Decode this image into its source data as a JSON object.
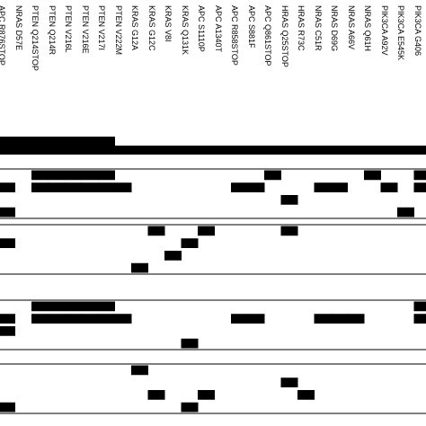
{
  "colors": {
    "fill": "#000000",
    "background": "#ffffff"
  },
  "columns": [
    "APC R876STOP",
    "NRAS D57E",
    "PTEN Q214STOP",
    "PTEN Q214R",
    "PTEN V216L",
    "PTEN V216E",
    "PTEN V217I",
    "PTEN V222M",
    "KRAS G12A",
    "KRAS G12C",
    "KRAS V8I",
    "KRAS Q131K",
    "APC S1110P",
    "APC A1340T",
    "APC R858STOP",
    "APC S881F",
    "APC Q861STOP",
    "HRAS Q25STOP",
    "HRAS R73C",
    "NRAS C51R",
    "NRAS D69G",
    "NRAS A66V",
    "NRAS Q61H",
    "PIK3CA A92V",
    "PIK3CA E545K",
    "PIK3CA G406"
  ],
  "matrix": {
    "summary_bar": [
      1,
      1,
      1,
      1,
      1,
      1,
      1,
      0,
      0,
      0,
      0,
      0,
      0,
      0,
      0,
      0,
      0,
      0,
      0,
      0,
      0,
      0,
      0,
      0,
      0,
      0
    ],
    "section_1": [
      [
        0,
        0,
        1,
        1,
        1,
        1,
        1,
        0,
        0,
        0,
        0,
        0,
        0,
        0,
        0,
        0,
        1,
        0,
        0,
        0,
        0,
        0,
        1,
        0,
        0,
        1
      ],
      [
        1,
        0,
        1,
        1,
        1,
        1,
        1,
        1,
        0,
        0,
        0,
        0,
        0,
        0,
        1,
        1,
        0,
        0,
        0,
        1,
        1,
        0,
        0,
        1,
        0,
        1
      ],
      [
        0,
        0,
        0,
        0,
        0,
        0,
        0,
        0,
        0,
        0,
        0,
        0,
        0,
        0,
        0,
        0,
        0,
        1,
        0,
        0,
        0,
        0,
        0,
        0,
        0,
        0
      ],
      [
        1,
        0,
        0,
        0,
        0,
        0,
        0,
        0,
        0,
        0,
        0,
        0,
        0,
        0,
        0,
        0,
        0,
        0,
        0,
        0,
        0,
        0,
        0,
        0,
        1,
        0
      ]
    ],
    "section_2": [
      [
        0,
        0,
        0,
        0,
        0,
        0,
        0,
        0,
        0,
        1,
        0,
        0,
        1,
        0,
        0,
        0,
        0,
        1,
        0,
        0,
        0,
        0,
        0,
        0,
        0,
        0
      ],
      [
        1,
        0,
        0,
        0,
        0,
        0,
        0,
        0,
        0,
        0,
        0,
        1,
        0,
        0,
        0,
        0,
        0,
        0,
        0,
        0,
        0,
        0,
        0,
        0,
        0,
        0
      ],
      [
        0,
        0,
        0,
        0,
        0,
        0,
        0,
        0,
        0,
        0,
        1,
        0,
        0,
        0,
        0,
        0,
        0,
        0,
        0,
        0,
        0,
        0,
        0,
        0,
        0,
        0
      ],
      [
        0,
        0,
        0,
        0,
        0,
        0,
        0,
        0,
        1,
        0,
        0,
        0,
        0,
        0,
        0,
        0,
        0,
        0,
        0,
        0,
        0,
        0,
        0,
        0,
        0,
        0
      ]
    ],
    "section_3": [
      [
        0,
        0,
        1,
        1,
        1,
        1,
        1,
        0,
        0,
        0,
        0,
        0,
        0,
        0,
        0,
        0,
        0,
        0,
        0,
        0,
        0,
        0,
        0,
        0,
        0,
        1
      ],
      [
        1,
        0,
        1,
        1,
        1,
        1,
        1,
        1,
        0,
        0,
        0,
        0,
        0,
        0,
        1,
        1,
        0,
        0,
        0,
        1,
        1,
        1,
        0,
        0,
        0,
        1
      ],
      [
        1,
        0,
        0,
        0,
        0,
        0,
        0,
        0,
        0,
        0,
        0,
        0,
        0,
        0,
        0,
        0,
        0,
        0,
        0,
        0,
        0,
        0,
        0,
        0,
        0,
        0
      ],
      [
        0,
        0,
        0,
        0,
        0,
        0,
        0,
        0,
        0,
        0,
        0,
        1,
        0,
        0,
        0,
        0,
        0,
        0,
        0,
        0,
        0,
        0,
        0,
        0,
        0,
        0
      ]
    ],
    "section_4": [
      [
        0,
        0,
        0,
        0,
        0,
        0,
        0,
        0,
        1,
        0,
        0,
        0,
        0,
        0,
        0,
        0,
        0,
        0,
        0,
        0,
        0,
        0,
        0,
        0,
        0,
        0
      ],
      [
        0,
        0,
        0,
        0,
        0,
        0,
        0,
        0,
        0,
        0,
        0,
        0,
        0,
        0,
        0,
        0,
        0,
        1,
        0,
        0,
        0,
        0,
        0,
        0,
        0,
        0
      ],
      [
        0,
        0,
        0,
        0,
        0,
        0,
        0,
        0,
        0,
        1,
        0,
        0,
        1,
        0,
        0,
        0,
        0,
        0,
        1,
        0,
        0,
        0,
        0,
        0,
        0,
        0
      ],
      [
        1,
        0,
        0,
        0,
        0,
        0,
        0,
        0,
        0,
        0,
        0,
        1,
        0,
        0,
        0,
        0,
        0,
        0,
        0,
        0,
        0,
        0,
        0,
        0,
        0,
        0
      ]
    ]
  }
}
